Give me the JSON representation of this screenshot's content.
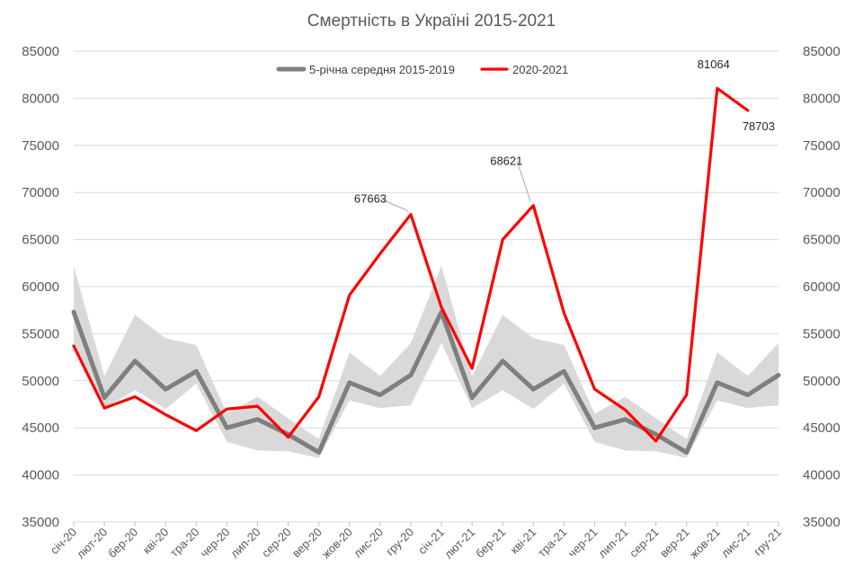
{
  "chart_data": {
    "type": "line",
    "title": "Смертність в Україні 2015-2021",
    "xlabel": "",
    "ylabel": "",
    "ylim": [
      35000,
      85000
    ],
    "yticks": [
      "85000",
      "80000",
      "75000",
      "70000",
      "65000",
      "60000",
      "55000",
      "50000",
      "45000",
      "40000",
      "35000"
    ],
    "categories": [
      "січ-20",
      "лют-20",
      "бер-20",
      "кві-20",
      "тра-20",
      "чер-20",
      "лип-20",
      "сер-20",
      "вер-20",
      "жов-20",
      "лис-20",
      "гру-20",
      "січ-21",
      "лют-21",
      "бер-21",
      "кві-21",
      "тра-21",
      "чер-21",
      "лип-21",
      "сер-21",
      "вер-21",
      "жов-21",
      "лис-21",
      "гру-21"
    ],
    "band": {
      "upper": [
        62200,
        50500,
        57000,
        54500,
        53800,
        46500,
        48300,
        46000,
        43800,
        53000,
        50500,
        54000,
        62200,
        50500,
        57000,
        54500,
        53800,
        46500,
        48300,
        46000,
        43800,
        53000,
        50500,
        54000
      ],
      "lower": [
        54000,
        47100,
        49000,
        47000,
        49700,
        43500,
        42600,
        42500,
        41800,
        47900,
        47100,
        47400,
        54000,
        47100,
        49000,
        47000,
        49700,
        43500,
        42600,
        42500,
        41800,
        47900,
        47100,
        47400
      ]
    },
    "series": [
      {
        "name": "5-річна середня 2015-2019",
        "color": "#7f7f7f",
        "values": [
          57300,
          48200,
          52100,
          49100,
          51000,
          45000,
          45900,
          44300,
          42400,
          49800,
          48500,
          50600,
          57300,
          48200,
          52100,
          49100,
          51000,
          45000,
          45900,
          44300,
          42400,
          49800,
          48500,
          50600
        ]
      },
      {
        "name": "2020-2021",
        "color": "#ff0000",
        "values": [
          53700,
          47100,
          48300,
          46400,
          44700,
          47000,
          47300,
          44000,
          48300,
          59100,
          63500,
          67663,
          57800,
          51300,
          65000,
          68621,
          57200,
          49100,
          46900,
          43600,
          48500,
          81064,
          78703,
          null
        ]
      }
    ],
    "data_labels": [
      {
        "series": 1,
        "index": 11,
        "text": "67663"
      },
      {
        "series": 1,
        "index": 15,
        "text": "68621"
      },
      {
        "series": 1,
        "index": 21,
        "text": "81064"
      },
      {
        "series": 1,
        "index": 22,
        "text": "78703"
      }
    ],
    "legend_position": "top",
    "grid": true,
    "band_color": "#d9d9d9",
    "grid_color": "#d9d9d9"
  }
}
